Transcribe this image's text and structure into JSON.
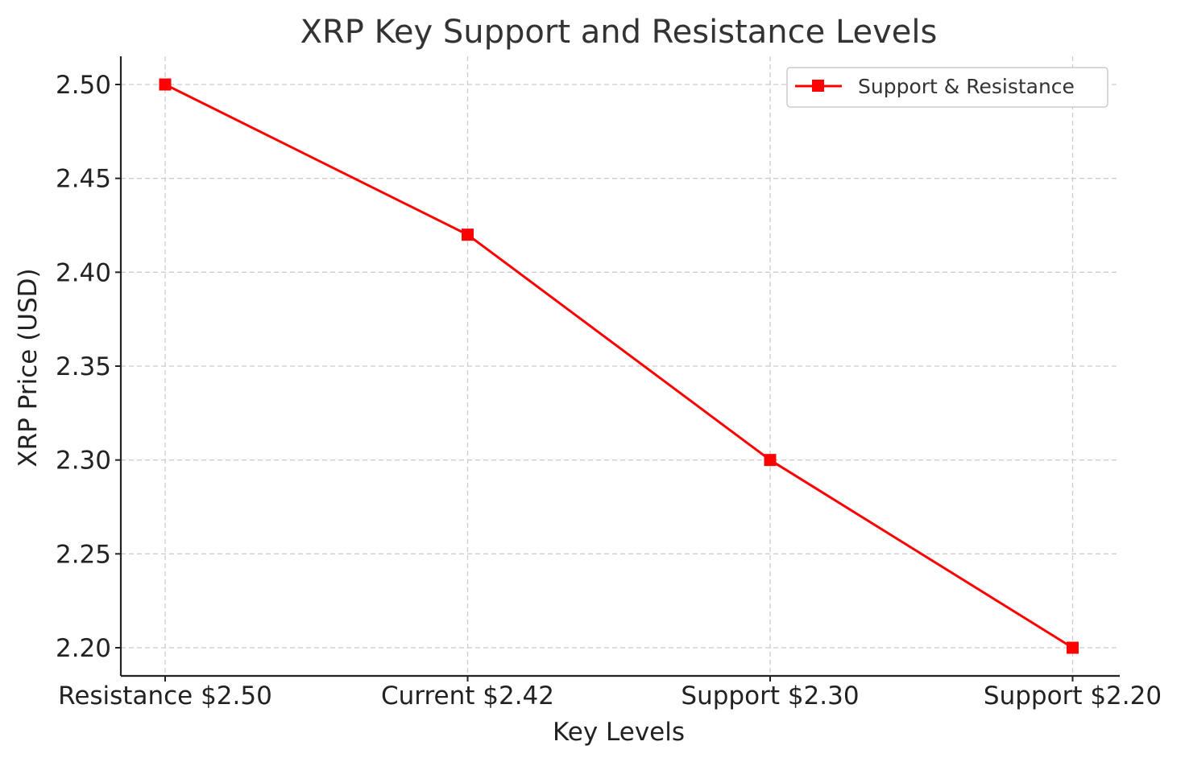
{
  "chart_data": {
    "type": "line",
    "title": "XRP Key Support and Resistance Levels",
    "xlabel": "Key Levels",
    "ylabel": "XRP Price (USD)",
    "categories": [
      "Resistance $2.50",
      "Current $2.42",
      "Support $2.30",
      "Support $2.20"
    ],
    "series": [
      {
        "name": "Support & Resistance",
        "values": [
          2.5,
          2.42,
          2.3,
          2.2
        ],
        "color": "#ff0000",
        "marker": "square"
      }
    ],
    "ylim": [
      2.185,
      2.515
    ],
    "yticks": [
      2.2,
      2.25,
      2.3,
      2.35,
      2.4,
      2.45,
      2.5
    ],
    "ytick_labels": [
      "2.20",
      "2.25",
      "2.30",
      "2.35",
      "2.40",
      "2.45",
      "2.50"
    ],
    "grid": true,
    "legend_position": "top-right"
  }
}
